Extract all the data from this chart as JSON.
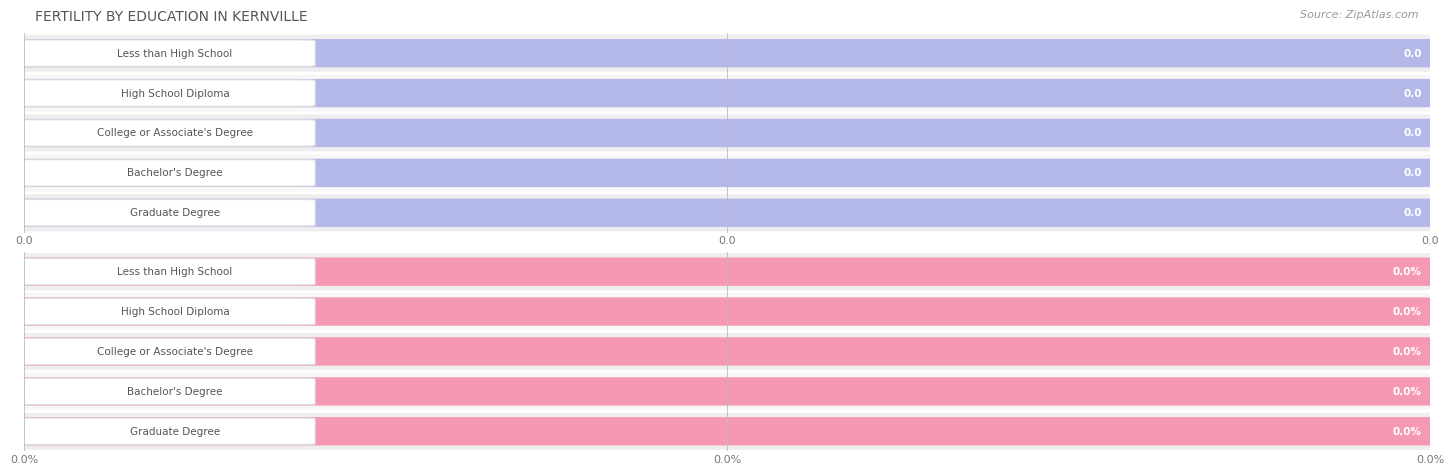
{
  "title": "FERTILITY BY EDUCATION IN KERNVILLE",
  "source": "Source: ZipAtlas.com",
  "categories": [
    "Less than High School",
    "High School Diploma",
    "College or Associate's Degree",
    "Bachelor's Degree",
    "Graduate Degree"
  ],
  "values_top": [
    0.0,
    0.0,
    0.0,
    0.0,
    0.0
  ],
  "values_bottom": [
    0.0,
    0.0,
    0.0,
    0.0,
    0.0
  ],
  "bar_color_top": "#b3b8e8",
  "bar_color_bottom": "#f598b2",
  "row_bg_top": "#ebebf5",
  "row_bg_bottom": "#f5f5f5",
  "label_box_color": "#ffffff",
  "label_box_edge": "#cccccc",
  "grid_color": "#cccccc",
  "text_color": "#555555",
  "value_text_color": "#999999",
  "title_color": "#555555",
  "source_color": "#999999",
  "xticks_top": [
    0.0,
    0.5,
    1.0
  ],
  "xtick_labels_top": [
    "0.0",
    "0.0",
    "0.0"
  ],
  "xticks_bottom": [
    0.0,
    0.5,
    1.0
  ],
  "xtick_labels_bottom": [
    "0.0%",
    "0.0%",
    "0.0%"
  ],
  "title_fontsize": 10,
  "source_fontsize": 8,
  "bar_fontsize": 8,
  "tick_fontsize": 8
}
